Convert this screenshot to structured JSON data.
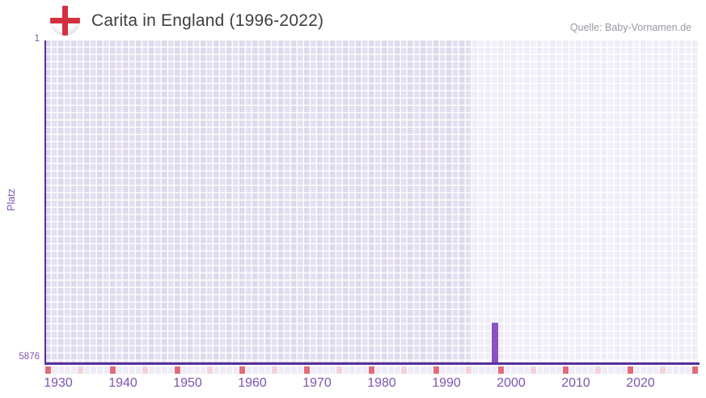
{
  "header": {
    "title": "Carita in England (1996-2022)",
    "source": "Quelle: Baby-Vornamen.de",
    "flag_icon": "england-flag"
  },
  "axes": {
    "y_top": "1",
    "y_bottom": "5876",
    "y_label": "Platz"
  },
  "chart_data": {
    "type": "bar",
    "title": "Carita in England (1996-2022)",
    "ylabel": "Platz",
    "x_axis": {
      "start_year": 1928,
      "end_year": 2028,
      "tick_years": [
        1930,
        1940,
        1950,
        1960,
        1970,
        1980,
        1990,
        2000,
        2010,
        2020
      ]
    },
    "y_axis": {
      "min": 1,
      "max": 5876,
      "inverted": true,
      "tick_labels": [
        "1",
        "5876"
      ]
    },
    "series": [
      {
        "name": "Platz",
        "points": [
          {
            "year": 1997,
            "rank": 5150
          }
        ]
      }
    ],
    "highlight_region": {
      "from_year": 1994,
      "to_year": 2028
    },
    "ruler": {
      "major_every": 10,
      "minor_every": 5
    },
    "colors": {
      "bar": "#8b51c4",
      "axis_line": "#55309b",
      "tick_label": "#7c55ae",
      "grid_pre_period": "#ded9eb",
      "grid_data_period": "#efecf7",
      "ruler_base": "#efecf7",
      "ruler_major": "#e26b79",
      "ruler_minor": "#f3d2dc",
      "title_text": "#3f3f3f",
      "source_text": "#9a96a0",
      "flag_cross": "#d23040"
    }
  }
}
